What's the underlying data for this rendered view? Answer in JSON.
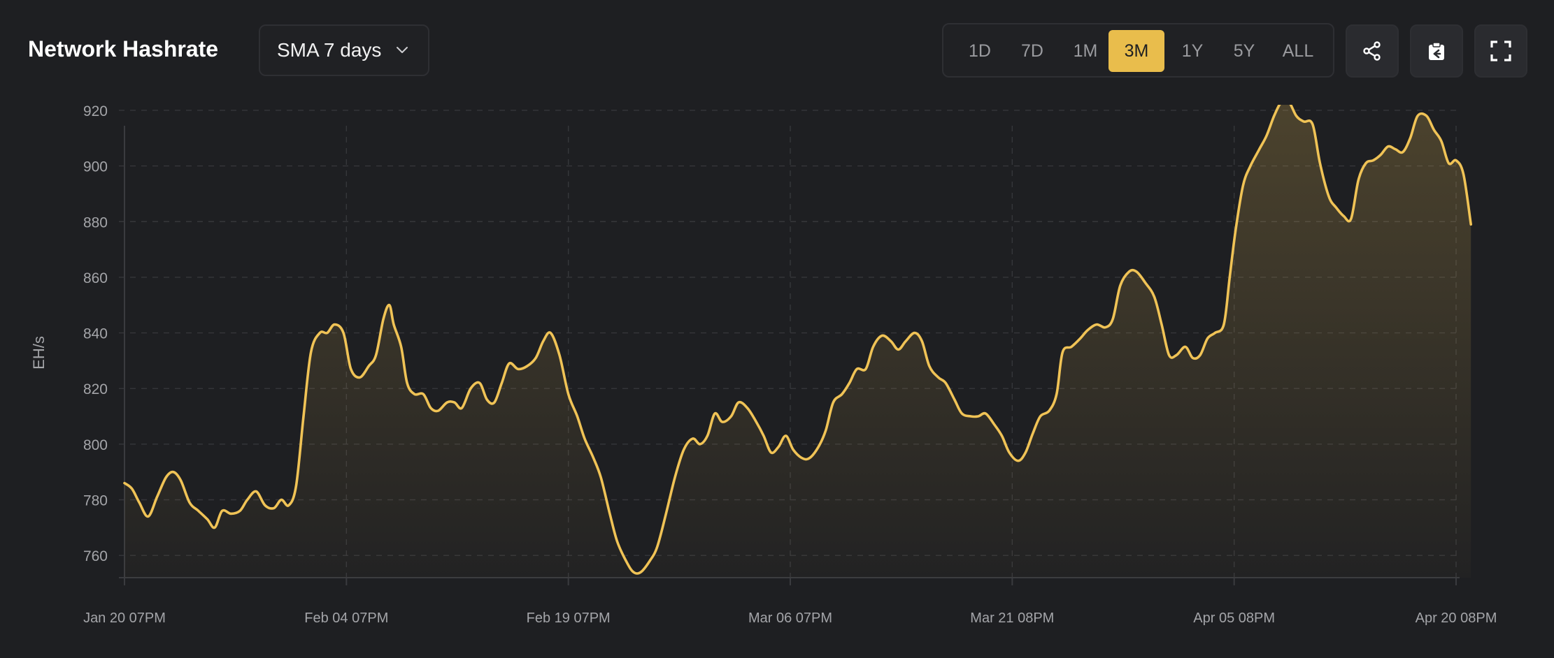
{
  "header": {
    "title": "Network Hashrate",
    "select_value": "SMA 7 days",
    "ranges": [
      "1D",
      "7D",
      "1M",
      "3M",
      "1Y",
      "5Y",
      "ALL"
    ],
    "active_range": "3M"
  },
  "colors": {
    "background": "#1e1f22",
    "accent": "#e9bd4c",
    "line": "#f0c356",
    "grid": "#36373b",
    "tick_text": "#a4a5a9"
  },
  "icons": [
    "share-icon",
    "clipboard-icon",
    "fullscreen-icon",
    "chevron-down-icon"
  ],
  "chart_data": {
    "type": "area",
    "title": "",
    "xlabel": "",
    "ylabel": "EH/s",
    "ylim": [
      752,
      922
    ],
    "yticks": [
      760,
      780,
      800,
      820,
      840,
      860,
      880,
      900,
      920
    ],
    "xlim": [
      0,
      90
    ],
    "xticks": [
      {
        "x": 0,
        "label": "Jan 20 07PM"
      },
      {
        "x": 15,
        "label": "Feb 04 07PM"
      },
      {
        "x": 30,
        "label": "Feb 19 07PM"
      },
      {
        "x": 45,
        "label": "Mar 06 07PM"
      },
      {
        "x": 60,
        "label": "Mar 21 08PM"
      },
      {
        "x": 75,
        "label": "Apr 05 08PM"
      },
      {
        "x": 90,
        "label": "Apr 20 08PM"
      }
    ],
    "grid": true,
    "series": [
      {
        "points": [
          [
            0,
            786
          ],
          [
            0.5,
            784
          ],
          [
            1.0,
            779
          ],
          [
            1.6,
            774
          ],
          [
            2.2,
            781
          ],
          [
            2.8,
            788
          ],
          [
            3.3,
            790
          ],
          [
            3.8,
            787
          ],
          [
            4.4,
            779
          ],
          [
            5.0,
            776
          ],
          [
            5.6,
            773
          ],
          [
            6.1,
            770
          ],
          [
            6.6,
            776
          ],
          [
            7.2,
            775
          ],
          [
            7.8,
            776
          ],
          [
            8.3,
            780
          ],
          [
            8.9,
            783
          ],
          [
            9.5,
            778
          ],
          [
            10.1,
            777
          ],
          [
            10.6,
            780
          ],
          [
            11.1,
            778
          ],
          [
            11.6,
            785
          ],
          [
            12.1,
            810
          ],
          [
            12.6,
            833
          ],
          [
            13.2,
            840
          ],
          [
            13.7,
            840
          ],
          [
            14.2,
            843
          ],
          [
            14.8,
            840
          ],
          [
            15.3,
            827
          ],
          [
            15.9,
            824
          ],
          [
            16.5,
            828
          ],
          [
            17.0,
            832
          ],
          [
            17.5,
            845
          ],
          [
            17.9,
            850
          ],
          [
            18.2,
            843
          ],
          [
            18.7,
            835
          ],
          [
            19.1,
            822
          ],
          [
            19.6,
            818
          ],
          [
            20.2,
            818
          ],
          [
            20.7,
            813
          ],
          [
            21.2,
            812
          ],
          [
            21.8,
            815
          ],
          [
            22.3,
            815
          ],
          [
            22.8,
            813
          ],
          [
            23.4,
            820
          ],
          [
            24.0,
            822
          ],
          [
            24.5,
            816
          ],
          [
            25.0,
            815
          ],
          [
            25.5,
            822
          ],
          [
            26.0,
            829
          ],
          [
            26.6,
            827
          ],
          [
            27.2,
            828
          ],
          [
            27.8,
            831
          ],
          [
            28.3,
            837
          ],
          [
            28.8,
            840
          ],
          [
            29.4,
            832
          ],
          [
            30.0,
            818
          ],
          [
            30.6,
            810
          ],
          [
            31.1,
            802
          ],
          [
            31.7,
            795
          ],
          [
            32.2,
            788
          ],
          [
            32.8,
            775
          ],
          [
            33.3,
            765
          ],
          [
            33.9,
            758
          ],
          [
            34.4,
            754
          ],
          [
            34.9,
            754
          ],
          [
            35.5,
            758
          ],
          [
            36.0,
            763
          ],
          [
            36.6,
            775
          ],
          [
            37.2,
            788
          ],
          [
            37.8,
            798
          ],
          [
            38.4,
            802
          ],
          [
            38.9,
            800
          ],
          [
            39.4,
            803
          ],
          [
            39.9,
            811
          ],
          [
            40.4,
            808
          ],
          [
            41.0,
            810
          ],
          [
            41.5,
            815
          ],
          [
            42.1,
            813
          ],
          [
            42.7,
            808
          ],
          [
            43.2,
            803
          ],
          [
            43.7,
            797
          ],
          [
            44.2,
            799
          ],
          [
            44.7,
            803
          ],
          [
            45.2,
            798
          ],
          [
            45.8,
            795
          ],
          [
            46.3,
            795
          ],
          [
            46.9,
            799
          ],
          [
            47.4,
            805
          ],
          [
            47.9,
            815
          ],
          [
            48.5,
            818
          ],
          [
            49.0,
            822
          ],
          [
            49.5,
            827
          ],
          [
            50.1,
            827
          ],
          [
            50.6,
            835
          ],
          [
            51.2,
            839
          ],
          [
            51.8,
            837
          ],
          [
            52.3,
            834
          ],
          [
            52.8,
            837
          ],
          [
            53.4,
            840
          ],
          [
            53.9,
            837
          ],
          [
            54.4,
            828
          ],
          [
            55.0,
            824
          ],
          [
            55.5,
            822
          ],
          [
            56.1,
            816
          ],
          [
            56.6,
            811
          ],
          [
            57.2,
            810
          ],
          [
            57.7,
            810
          ],
          [
            58.2,
            811
          ],
          [
            58.8,
            807
          ],
          [
            59.3,
            803
          ],
          [
            59.8,
            797
          ],
          [
            60.4,
            794
          ],
          [
            60.9,
            797
          ],
          [
            61.4,
            804
          ],
          [
            61.9,
            810
          ],
          [
            62.5,
            812
          ],
          [
            63.0,
            818
          ],
          [
            63.4,
            833
          ],
          [
            64.0,
            835
          ],
          [
            64.6,
            838
          ],
          [
            65.1,
            841
          ],
          [
            65.7,
            843
          ],
          [
            66.3,
            842
          ],
          [
            66.8,
            845
          ],
          [
            67.3,
            857
          ],
          [
            67.9,
            862
          ],
          [
            68.4,
            862
          ],
          [
            69.0,
            858
          ],
          [
            69.6,
            853
          ],
          [
            70.1,
            843
          ],
          [
            70.6,
            832
          ],
          [
            71.1,
            832
          ],
          [
            71.7,
            835
          ],
          [
            72.2,
            831
          ],
          [
            72.7,
            832
          ],
          [
            73.2,
            838
          ],
          [
            73.7,
            840
          ],
          [
            74.3,
            843
          ],
          [
            74.7,
            860
          ],
          [
            75.1,
            877
          ],
          [
            75.6,
            893
          ],
          [
            76.1,
            900
          ],
          [
            76.7,
            906
          ],
          [
            77.2,
            911
          ],
          [
            77.7,
            918
          ],
          [
            78.2,
            923
          ],
          [
            78.7,
            923
          ],
          [
            79.2,
            918
          ],
          [
            79.7,
            916
          ],
          [
            80.3,
            915
          ],
          [
            80.8,
            901
          ],
          [
            81.4,
            889
          ],
          [
            81.9,
            885
          ],
          [
            82.4,
            882
          ],
          [
            82.9,
            881
          ],
          [
            83.4,
            895
          ],
          [
            83.9,
            901
          ],
          [
            84.4,
            902
          ],
          [
            84.9,
            904
          ],
          [
            85.4,
            907
          ],
          [
            85.9,
            906
          ],
          [
            86.4,
            905
          ],
          [
            86.9,
            910
          ],
          [
            87.4,
            918
          ],
          [
            88.0,
            918
          ],
          [
            88.5,
            913
          ],
          [
            89.0,
            909
          ],
          [
            89.5,
            901
          ],
          [
            90.0,
            902
          ],
          [
            90.5,
            897
          ],
          [
            91.0,
            879
          ]
        ]
      }
    ]
  }
}
